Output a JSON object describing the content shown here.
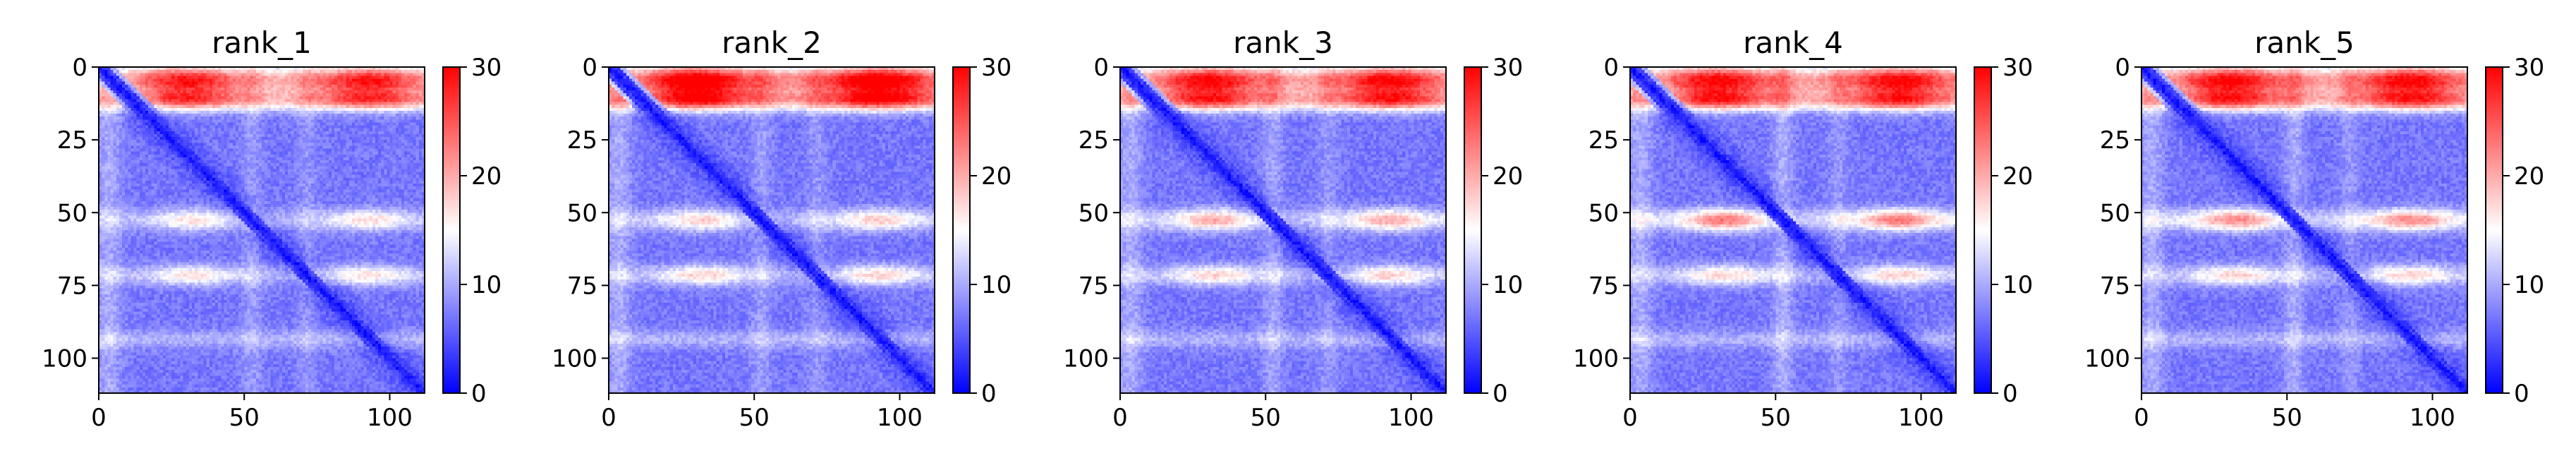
{
  "figure": {
    "background": "#ffffff"
  },
  "chart_data": [
    {
      "type": "heatmap",
      "title": "rank_1",
      "xlim": [
        0,
        112
      ],
      "ylim": [
        112,
        0
      ],
      "xticks": [
        0,
        50,
        100
      ],
      "yticks": [
        0,
        25,
        50,
        75,
        100
      ],
      "colorbar": {
        "min": 0,
        "max": 30,
        "ticks": [
          0,
          10,
          20,
          30
        ],
        "cmap": "bwr",
        "colors": [
          "#0000ff",
          "#ffffff",
          "#ff0000"
        ]
      },
      "bands": {
        "top": 0.85,
        "b50": 0.5,
        "b72": 0.55,
        "b93": 0.35
      }
    },
    {
      "type": "heatmap",
      "title": "rank_2",
      "xlim": [
        0,
        112
      ],
      "ylim": [
        112,
        0
      ],
      "xticks": [
        0,
        50,
        100
      ],
      "yticks": [
        0,
        25,
        50,
        75,
        100
      ],
      "colorbar": {
        "min": 0,
        "max": 30,
        "ticks": [
          0,
          10,
          20,
          30
        ],
        "cmap": "bwr",
        "colors": [
          "#0000ff",
          "#ffffff",
          "#ff0000"
        ]
      },
      "bands": {
        "top": 1.0,
        "b50": 0.55,
        "b72": 0.6,
        "b93": 0.35
      }
    },
    {
      "type": "heatmap",
      "title": "rank_3",
      "xlim": [
        0,
        112
      ],
      "ylim": [
        112,
        0
      ],
      "xticks": [
        0,
        50,
        100
      ],
      "yticks": [
        0,
        25,
        50,
        75,
        100
      ],
      "colorbar": {
        "min": 0,
        "max": 30,
        "ticks": [
          0,
          10,
          20,
          30
        ],
        "cmap": "bwr",
        "colors": [
          "#0000ff",
          "#ffffff",
          "#ff0000"
        ]
      },
      "bands": {
        "top": 0.9,
        "b50": 0.65,
        "b72": 0.6,
        "b93": 0.35
      }
    },
    {
      "type": "heatmap",
      "title": "rank_4",
      "xlim": [
        0,
        112
      ],
      "ylim": [
        112,
        0
      ],
      "xticks": [
        0,
        50,
        100
      ],
      "yticks": [
        0,
        25,
        50,
        75,
        100
      ],
      "colorbar": {
        "min": 0,
        "max": 30,
        "ticks": [
          0,
          10,
          20,
          30
        ],
        "cmap": "bwr",
        "colors": [
          "#0000ff",
          "#ffffff",
          "#ff0000"
        ]
      },
      "bands": {
        "top": 0.9,
        "b50": 0.8,
        "b72": 0.6,
        "b93": 0.35
      }
    },
    {
      "type": "heatmap",
      "title": "rank_5",
      "xlim": [
        0,
        112
      ],
      "ylim": [
        112,
        0
      ],
      "xticks": [
        0,
        50,
        100
      ],
      "yticks": [
        0,
        25,
        50,
        75,
        100
      ],
      "colorbar": {
        "min": 0,
        "max": 30,
        "ticks": [
          0,
          10,
          20,
          30
        ],
        "cmap": "bwr",
        "colors": [
          "#0000ff",
          "#ffffff",
          "#ff0000"
        ]
      },
      "bands": {
        "top": 0.9,
        "b50": 0.75,
        "b72": 0.6,
        "b93": 0.35
      }
    }
  ]
}
